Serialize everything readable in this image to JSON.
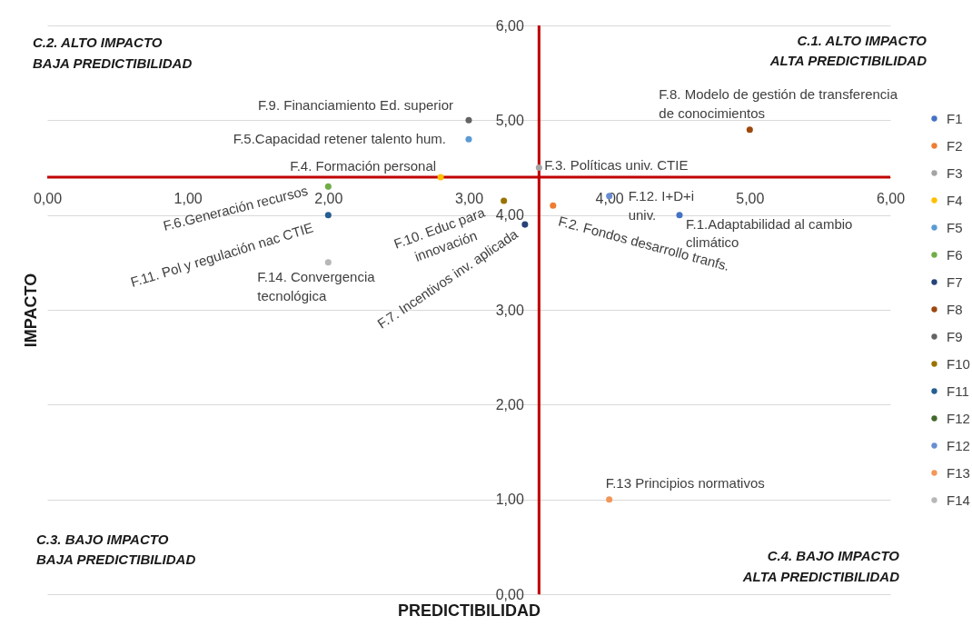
{
  "chart_data": {
    "type": "scatter",
    "xlabel": "PREDICTIBILIDAD",
    "ylabel": "IMPACTO",
    "xlim": [
      0,
      6
    ],
    "ylim": [
      0,
      6
    ],
    "xticks": [
      {
        "value": 0,
        "label": "0,00"
      },
      {
        "value": 1,
        "label": "1,00"
      },
      {
        "value": 2,
        "label": "2,00"
      },
      {
        "value": 3,
        "label": "3,00"
      },
      {
        "value": 4,
        "label": "4,00"
      },
      {
        "value": 5,
        "label": "5,00"
      },
      {
        "value": 6,
        "label": "6,00"
      }
    ],
    "yticks": [
      {
        "value": 0,
        "label": "0,00"
      },
      {
        "value": 1,
        "label": "1,00"
      },
      {
        "value": 2,
        "label": "2,00"
      },
      {
        "value": 3,
        "label": "3,00"
      },
      {
        "value": 4,
        "label": "4,00"
      },
      {
        "value": 5,
        "label": "5,00"
      },
      {
        "value": 6,
        "label": "6,00"
      }
    ],
    "grid": "y",
    "legend": "right",
    "marker": "circle",
    "ref_lines": [
      {
        "axis": "x",
        "value": 3.5,
        "color": "#c00000"
      },
      {
        "axis": "y",
        "value": 4.4,
        "color": "#c00000"
      }
    ],
    "series": [
      {
        "name": "F1",
        "color": "#4472c4",
        "x": [
          4.5
        ],
        "values": [
          4.0
        ]
      },
      {
        "name": "F2",
        "color": "#ed7d31",
        "x": [
          3.6
        ],
        "values": [
          4.1
        ]
      },
      {
        "name": "F3",
        "color": "#a5a5a5",
        "x": [
          3.5
        ],
        "values": [
          4.5
        ]
      },
      {
        "name": "F4",
        "color": "#ffc000",
        "x": [
          2.8
        ],
        "values": [
          4.4
        ]
      },
      {
        "name": "F5",
        "color": "#5b9bd5",
        "x": [
          3.0
        ],
        "values": [
          4.8
        ]
      },
      {
        "name": "F6",
        "color": "#70ad47",
        "x": [
          2.0
        ],
        "values": [
          4.3
        ]
      },
      {
        "name": "F7",
        "color": "#264478",
        "x": [
          3.4
        ],
        "values": [
          3.9
        ]
      },
      {
        "name": "F8",
        "color": "#9e480e",
        "x": [
          5.0
        ],
        "values": [
          4.9
        ]
      },
      {
        "name": "F9",
        "color": "#636363",
        "x": [
          3.0
        ],
        "values": [
          5.0
        ]
      },
      {
        "name": "F10",
        "color": "#997300",
        "x": [
          3.25
        ],
        "values": [
          4.15
        ]
      },
      {
        "name": "F11",
        "color": "#255e91",
        "x": [
          2.0
        ],
        "values": [
          4.0
        ]
      },
      {
        "name": "F12",
        "color": "#43682b",
        "x": [
          null
        ],
        "values": [
          null
        ]
      },
      {
        "name": "F12",
        "color": "#698ed0",
        "x": [
          4.0
        ],
        "values": [
          4.2
        ]
      },
      {
        "name": "F13",
        "color": "#f1975a",
        "x": [
          4.0
        ],
        "values": [
          1.0
        ]
      },
      {
        "name": "F14",
        "color": "#b7b7b7",
        "x": [
          2.0
        ],
        "values": [
          3.5
        ]
      }
    ],
    "annotations": [
      "C.2. ALTO IMPACTO BAJA PREDICTIBILIDAD",
      "C.1. ALTO IMPACTO ALTA PREDICTIBILIDAD",
      {
        "text": "F.9. Financiamiento Ed. superior",
        "x": 3.0,
        "y": 5.0
      },
      {
        "text": "F.8. Modelo de gestión de transferencia de conocimientos",
        "x": 5.0,
        "y": 4.9
      },
      {
        "text": "F.5.Capacidad retener talento hum.",
        "x": 3.0,
        "y": 4.8
      },
      {
        "text": "F.4. Formación personal",
        "x": 2.8,
        "y": 4.4
      },
      {
        "text": "F.3. Políticas univ. CTIE",
        "x": 3.5,
        "y": 4.5
      },
      {
        "text": "F.6.Generación recursos",
        "x": 2.0,
        "y": 4.3
      },
      {
        "text": "F.12. I+D+i univ.",
        "x": 4.0,
        "y": 4.2
      },
      {
        "text": "F.10. Educ para innovación",
        "x": 3.25,
        "y": 4.15
      },
      {
        "text": "F.2. Fondos desarrollo tranfs.",
        "x": 3.6,
        "y": 4.1
      },
      {
        "text": "F.1.Adaptabilidad al cambio climático",
        "x": 4.5,
        "y": 4.0
      },
      {
        "text": "F.11. Pol y regulación nac CTIE",
        "x": 2.0,
        "y": 4.0
      },
      {
        "text": "F.7. Incentivos inv. aplicada",
        "x": 3.4,
        "y": 3.9
      },
      {
        "text": "F.14. Convergencia tecnológica",
        "x": 2.0,
        "y": 3.5
      },
      {
        "text": "F.13 Principios normativos",
        "x": 4.0,
        "y": 1.0
      },
      "C.3. BAJO IMPACTO BAJA PREDICTIBILIDAD",
      "C.4. BAJO IMPACTO ALTA PREDICTIBILIDAD"
    ]
  }
}
